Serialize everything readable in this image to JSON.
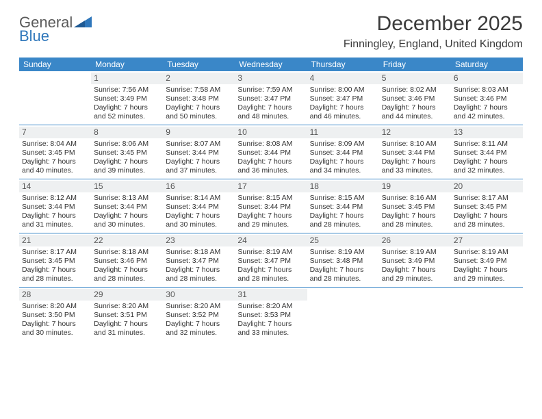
{
  "logo": {
    "word1": "General",
    "word2": "Blue"
  },
  "title": "December 2025",
  "location": "Finningley, England, United Kingdom",
  "day_headers": [
    "Sunday",
    "Monday",
    "Tuesday",
    "Wednesday",
    "Thursday",
    "Friday",
    "Saturday"
  ],
  "colors": {
    "header_bg": "#3a87c8",
    "header_text": "#ffffff",
    "daynum_bg": "#eef0f1",
    "week_divider": "#3a87c8",
    "logo_gray": "#5a5a5a",
    "logo_blue": "#2f77bb"
  },
  "weeks": [
    [
      {
        "n": "",
        "sr": "",
        "ss": "",
        "dl1": "",
        "dl2": ""
      },
      {
        "n": "1",
        "sr": "Sunrise: 7:56 AM",
        "ss": "Sunset: 3:49 PM",
        "dl1": "Daylight: 7 hours",
        "dl2": "and 52 minutes."
      },
      {
        "n": "2",
        "sr": "Sunrise: 7:58 AM",
        "ss": "Sunset: 3:48 PM",
        "dl1": "Daylight: 7 hours",
        "dl2": "and 50 minutes."
      },
      {
        "n": "3",
        "sr": "Sunrise: 7:59 AM",
        "ss": "Sunset: 3:47 PM",
        "dl1": "Daylight: 7 hours",
        "dl2": "and 48 minutes."
      },
      {
        "n": "4",
        "sr": "Sunrise: 8:00 AM",
        "ss": "Sunset: 3:47 PM",
        "dl1": "Daylight: 7 hours",
        "dl2": "and 46 minutes."
      },
      {
        "n": "5",
        "sr": "Sunrise: 8:02 AM",
        "ss": "Sunset: 3:46 PM",
        "dl1": "Daylight: 7 hours",
        "dl2": "and 44 minutes."
      },
      {
        "n": "6",
        "sr": "Sunrise: 8:03 AM",
        "ss": "Sunset: 3:46 PM",
        "dl1": "Daylight: 7 hours",
        "dl2": "and 42 minutes."
      }
    ],
    [
      {
        "n": "7",
        "sr": "Sunrise: 8:04 AM",
        "ss": "Sunset: 3:45 PM",
        "dl1": "Daylight: 7 hours",
        "dl2": "and 40 minutes."
      },
      {
        "n": "8",
        "sr": "Sunrise: 8:06 AM",
        "ss": "Sunset: 3:45 PM",
        "dl1": "Daylight: 7 hours",
        "dl2": "and 39 minutes."
      },
      {
        "n": "9",
        "sr": "Sunrise: 8:07 AM",
        "ss": "Sunset: 3:44 PM",
        "dl1": "Daylight: 7 hours",
        "dl2": "and 37 minutes."
      },
      {
        "n": "10",
        "sr": "Sunrise: 8:08 AM",
        "ss": "Sunset: 3:44 PM",
        "dl1": "Daylight: 7 hours",
        "dl2": "and 36 minutes."
      },
      {
        "n": "11",
        "sr": "Sunrise: 8:09 AM",
        "ss": "Sunset: 3:44 PM",
        "dl1": "Daylight: 7 hours",
        "dl2": "and 34 minutes."
      },
      {
        "n": "12",
        "sr": "Sunrise: 8:10 AM",
        "ss": "Sunset: 3:44 PM",
        "dl1": "Daylight: 7 hours",
        "dl2": "and 33 minutes."
      },
      {
        "n": "13",
        "sr": "Sunrise: 8:11 AM",
        "ss": "Sunset: 3:44 PM",
        "dl1": "Daylight: 7 hours",
        "dl2": "and 32 minutes."
      }
    ],
    [
      {
        "n": "14",
        "sr": "Sunrise: 8:12 AM",
        "ss": "Sunset: 3:44 PM",
        "dl1": "Daylight: 7 hours",
        "dl2": "and 31 minutes."
      },
      {
        "n": "15",
        "sr": "Sunrise: 8:13 AM",
        "ss": "Sunset: 3:44 PM",
        "dl1": "Daylight: 7 hours",
        "dl2": "and 30 minutes."
      },
      {
        "n": "16",
        "sr": "Sunrise: 8:14 AM",
        "ss": "Sunset: 3:44 PM",
        "dl1": "Daylight: 7 hours",
        "dl2": "and 30 minutes."
      },
      {
        "n": "17",
        "sr": "Sunrise: 8:15 AM",
        "ss": "Sunset: 3:44 PM",
        "dl1": "Daylight: 7 hours",
        "dl2": "and 29 minutes."
      },
      {
        "n": "18",
        "sr": "Sunrise: 8:15 AM",
        "ss": "Sunset: 3:44 PM",
        "dl1": "Daylight: 7 hours",
        "dl2": "and 28 minutes."
      },
      {
        "n": "19",
        "sr": "Sunrise: 8:16 AM",
        "ss": "Sunset: 3:45 PM",
        "dl1": "Daylight: 7 hours",
        "dl2": "and 28 minutes."
      },
      {
        "n": "20",
        "sr": "Sunrise: 8:17 AM",
        "ss": "Sunset: 3:45 PM",
        "dl1": "Daylight: 7 hours",
        "dl2": "and 28 minutes."
      }
    ],
    [
      {
        "n": "21",
        "sr": "Sunrise: 8:17 AM",
        "ss": "Sunset: 3:45 PM",
        "dl1": "Daylight: 7 hours",
        "dl2": "and 28 minutes."
      },
      {
        "n": "22",
        "sr": "Sunrise: 8:18 AM",
        "ss": "Sunset: 3:46 PM",
        "dl1": "Daylight: 7 hours",
        "dl2": "and 28 minutes."
      },
      {
        "n": "23",
        "sr": "Sunrise: 8:18 AM",
        "ss": "Sunset: 3:47 PM",
        "dl1": "Daylight: 7 hours",
        "dl2": "and 28 minutes."
      },
      {
        "n": "24",
        "sr": "Sunrise: 8:19 AM",
        "ss": "Sunset: 3:47 PM",
        "dl1": "Daylight: 7 hours",
        "dl2": "and 28 minutes."
      },
      {
        "n": "25",
        "sr": "Sunrise: 8:19 AM",
        "ss": "Sunset: 3:48 PM",
        "dl1": "Daylight: 7 hours",
        "dl2": "and 28 minutes."
      },
      {
        "n": "26",
        "sr": "Sunrise: 8:19 AM",
        "ss": "Sunset: 3:49 PM",
        "dl1": "Daylight: 7 hours",
        "dl2": "and 29 minutes."
      },
      {
        "n": "27",
        "sr": "Sunrise: 8:19 AM",
        "ss": "Sunset: 3:49 PM",
        "dl1": "Daylight: 7 hours",
        "dl2": "and 29 minutes."
      }
    ],
    [
      {
        "n": "28",
        "sr": "Sunrise: 8:20 AM",
        "ss": "Sunset: 3:50 PM",
        "dl1": "Daylight: 7 hours",
        "dl2": "and 30 minutes."
      },
      {
        "n": "29",
        "sr": "Sunrise: 8:20 AM",
        "ss": "Sunset: 3:51 PM",
        "dl1": "Daylight: 7 hours",
        "dl2": "and 31 minutes."
      },
      {
        "n": "30",
        "sr": "Sunrise: 8:20 AM",
        "ss": "Sunset: 3:52 PM",
        "dl1": "Daylight: 7 hours",
        "dl2": "and 32 minutes."
      },
      {
        "n": "31",
        "sr": "Sunrise: 8:20 AM",
        "ss": "Sunset: 3:53 PM",
        "dl1": "Daylight: 7 hours",
        "dl2": "and 33 minutes."
      },
      {
        "n": "",
        "sr": "",
        "ss": "",
        "dl1": "",
        "dl2": ""
      },
      {
        "n": "",
        "sr": "",
        "ss": "",
        "dl1": "",
        "dl2": ""
      },
      {
        "n": "",
        "sr": "",
        "ss": "",
        "dl1": "",
        "dl2": ""
      }
    ]
  ]
}
